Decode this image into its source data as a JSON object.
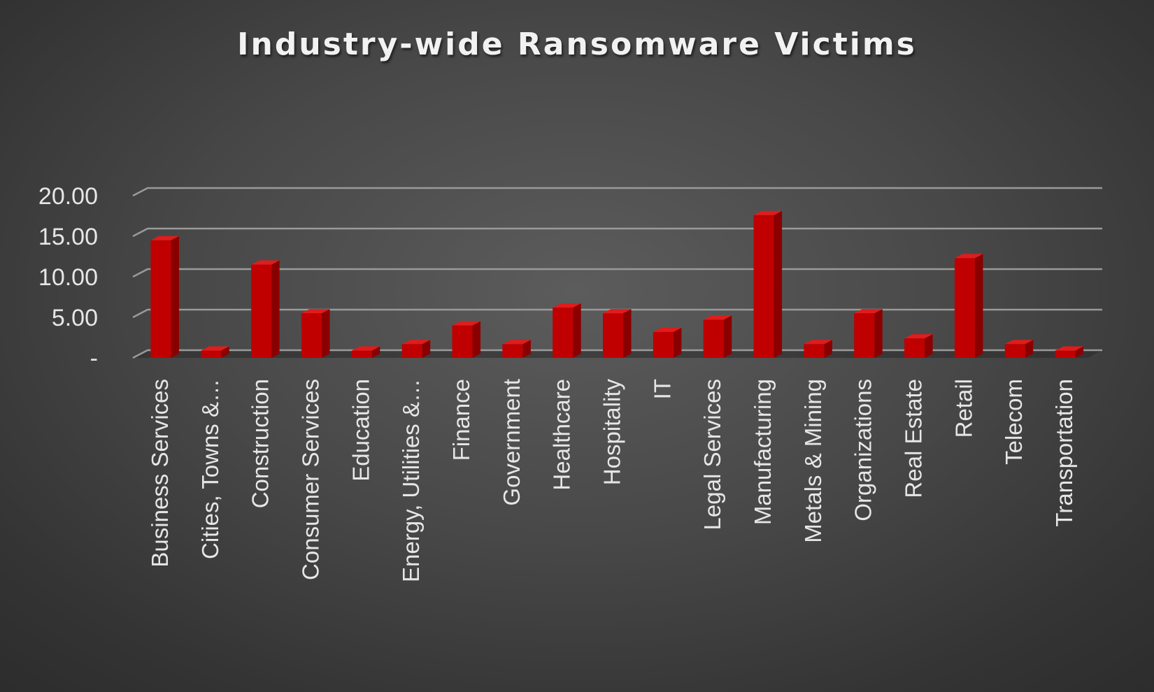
{
  "chart_data": {
    "type": "bar",
    "title": "Industry-wide Ransomware Victims",
    "xlabel": "",
    "ylabel": "",
    "categories": [
      "Business Services",
      "Cities, Towns &…",
      "Construction",
      "Consumer Services",
      "Education",
      "Energy, Utilities &…",
      "Finance",
      "Government",
      "Healthcare",
      "Hospitality",
      "IT",
      "Legal Services",
      "Manufacturing",
      "Metals & Mining",
      "Organizations",
      "Real Estate",
      "Retail",
      "Telecom",
      "Transportation"
    ],
    "values": [
      14.5,
      0.9,
      11.5,
      5.5,
      0.9,
      1.7,
      4.0,
      1.7,
      6.2,
      5.5,
      3.2,
      4.7,
      17.6,
      1.7,
      5.5,
      2.4,
      12.3,
      1.7,
      0.9
    ],
    "ylim": [
      0,
      20
    ],
    "y_ticks": [
      {
        "value": 0,
        "label": "-"
      },
      {
        "value": 5,
        "label": "5.00"
      },
      {
        "value": 10,
        "label": "10.00"
      },
      {
        "value": 15,
        "label": "15.00"
      },
      {
        "value": 20,
        "label": "20.00"
      }
    ],
    "grid": true,
    "legend": "none",
    "bar_style": "3d",
    "colors": {
      "bar_front": "#c00000",
      "bar_side": "#8a0000",
      "bar_top": "#e01c1c",
      "gridline": "#9a9a9a",
      "text": "#e6e6e6"
    }
  }
}
